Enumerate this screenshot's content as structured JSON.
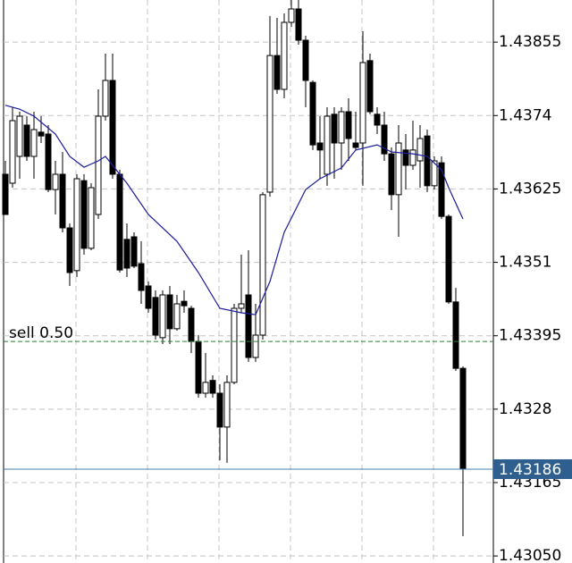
{
  "chart_data": {
    "type": "candlestick",
    "ylim": [
      1.43039,
      1.43921
    ],
    "yticks": [
      {
        "value": 1.4305,
        "label": "1.43050"
      },
      1.43165,
      1.4328,
      1.43395,
      1.4351,
      1.43625,
      1.4374,
      1.43855
    ],
    "grid": true,
    "up_color": "#ffffff",
    "down_color": "#000000",
    "open": [
      1.43648,
      1.43634,
      1.43676,
      1.43725,
      1.43676,
      1.43714,
      1.43711,
      1.43624,
      1.43648,
      1.43564,
      1.43497,
      1.43638,
      1.43532,
      1.43585,
      1.43739,
      1.43795,
      1.43648,
      1.43546,
      1.4355,
      1.43508,
      1.43473,
      1.43455,
      1.43392,
      1.43459,
      1.43406,
      1.43449,
      1.43438,
      1.43386,
      1.43305,
      1.43325,
      1.43305,
      1.43252,
      1.43322,
      1.43438,
      1.43459,
      1.43361,
      1.43396,
      1.4362,
      1.43834,
      1.43781,
      1.43886,
      1.43907,
      1.43858,
      1.43792,
      1.43697,
      1.43648,
      1.43742,
      1.43697,
      1.43746,
      1.43697,
      1.43697,
      1.43826,
      1.43742,
      1.43725,
      1.4368,
      1.43616,
      1.43686,
      1.43662,
      1.43669,
      1.43708,
      1.4363,
      1.43666,
      1.43582,
      1.43448,
      1.43344
    ],
    "high": [
      1.43669,
      1.43753,
      1.43746,
      1.43739,
      1.43746,
      1.43739,
      1.43725,
      1.43669,
      1.43683,
      1.43571,
      1.43648,
      1.43648,
      1.43634,
      1.43781,
      1.43837,
      1.43837,
      1.43655,
      1.43571,
      1.43557,
      1.43543,
      1.4348,
      1.43466,
      1.43466,
      1.43473,
      1.43459,
      1.43466,
      1.43442,
      1.43396,
      1.43368,
      1.43333,
      1.43319,
      1.43333,
      1.43445,
      1.43522,
      1.43529,
      1.43445,
      1.4362,
      1.43896,
      1.43893,
      1.439,
      1.43921,
      1.43921,
      1.43865,
      1.43795,
      1.43739,
      1.43753,
      1.43753,
      1.43753,
      1.43767,
      1.43746,
      1.43872,
      1.43837,
      1.43753,
      1.43746,
      1.4369,
      1.43725,
      1.43711,
      1.43732,
      1.43725,
      1.43718,
      1.43676,
      1.43676,
      1.43585,
      1.4347,
      1.43347
    ],
    "low": [
      1.43585,
      1.43627,
      1.43641,
      1.43669,
      1.43641,
      1.43697,
      1.4362,
      1.43585,
      1.43557,
      1.43473,
      1.43487,
      1.43522,
      1.43529,
      1.43578,
      1.43732,
      1.43641,
      1.43494,
      1.43487,
      1.43501,
      1.43445,
      1.43431,
      1.43389,
      1.43382,
      1.43382,
      1.43403,
      1.43431,
      1.43368,
      1.43298,
      1.43298,
      1.43298,
      1.432,
      1.43196,
      1.43319,
      1.43431,
      1.43354,
      1.43354,
      1.43389,
      1.43613,
      1.43774,
      1.43767,
      1.43879,
      1.43851,
      1.43753,
      1.43686,
      1.43641,
      1.4363,
      1.43641,
      1.43655,
      1.43669,
      1.43686,
      1.4363,
      1.43742,
      1.43711,
      1.43669,
      1.43592,
      1.4355,
      1.43624,
      1.43655,
      1.43627,
      1.4362,
      1.43624,
      1.43578,
      1.43445,
      1.4334,
      1.43081
    ],
    "close": [
      1.43585,
      1.43732,
      1.43739,
      1.43676,
      1.43718,
      1.43708,
      1.43624,
      1.43648,
      1.43564,
      1.43494,
      1.43641,
      1.43532,
      1.43627,
      1.43739,
      1.43795,
      1.43648,
      1.43498,
      1.43501,
      1.43504,
      1.43466,
      1.43438,
      1.43396,
      1.43459,
      1.43406,
      1.43445,
      1.43442,
      1.43386,
      1.43305,
      1.43322,
      1.43305,
      1.43252,
      1.43322,
      1.43438,
      1.43445,
      1.43361,
      1.43396,
      1.43616,
      1.43834,
      1.43781,
      1.43886,
      1.43907,
      1.43858,
      1.43795,
      1.43694,
      1.43686,
      1.43739,
      1.43697,
      1.43746,
      1.43704,
      1.4369,
      1.43823,
      1.43746,
      1.43725,
      1.4368,
      1.43616,
      1.43697,
      1.43662,
      1.43686,
      1.43704,
      1.4363,
      1.43669,
      1.43582,
      1.43448,
      1.43344,
      1.43186
    ],
    "ma": {
      "color": "#1c1c9c",
      "x": [
        0,
        2,
        4,
        7,
        9,
        11,
        13,
        14,
        17,
        20,
        24,
        27,
        30,
        33,
        35,
        37,
        39,
        42,
        44,
        47,
        49,
        52,
        54,
        57,
        59,
        61,
        62,
        64
      ],
      "values": [
        1.43756,
        1.4375,
        1.43739,
        1.43711,
        1.43676,
        1.43659,
        1.43669,
        1.43676,
        1.43634,
        1.43585,
        1.43543,
        1.43494,
        1.43438,
        1.43431,
        1.43428,
        1.4348,
        1.43557,
        1.43624,
        1.43641,
        1.43658,
        1.43686,
        1.43694,
        1.43683,
        1.4368,
        1.43676,
        1.43655,
        1.43627,
        1.43578
      ]
    },
    "order": {
      "label": "sell 0.50",
      "price": 1.43386,
      "color": "#2e7d32"
    },
    "current_price": 1.43186,
    "current_color": "#2f5f8f"
  }
}
